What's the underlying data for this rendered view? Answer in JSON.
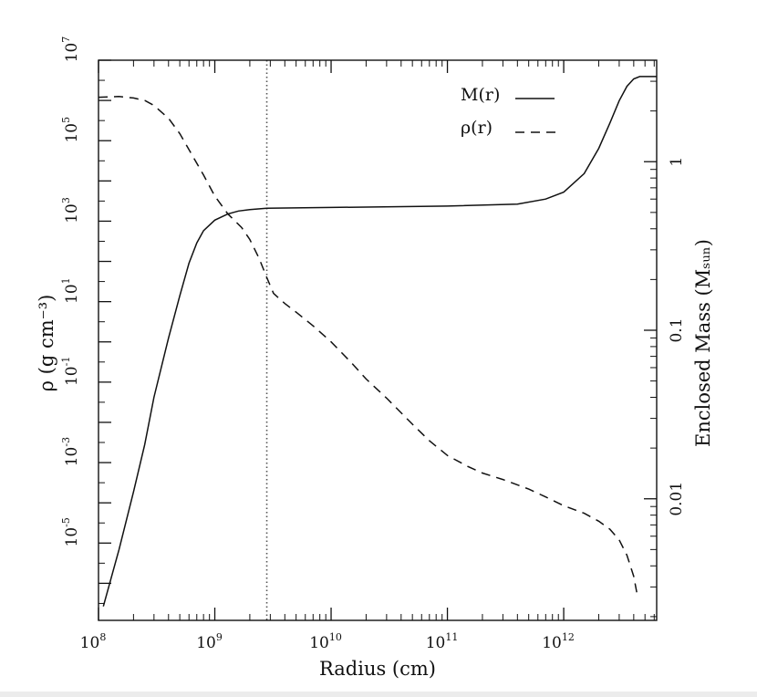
{
  "chart_data": {
    "type": "line",
    "title": "",
    "xlabel": "Radius (cm)",
    "ylabel_left": "ρ (g cm⁻³)",
    "ylabel_right": "Enclosed Mass (Mₛᵤₙ)",
    "xscale": "log",
    "yscale_left": "log",
    "yscale_right": "log",
    "xlim": [
      100000000.0,
      6300000000000.0
    ],
    "ylim_left": [
      1.2e-07,
      10000000.0
    ],
    "ylim_right": [
      0.0019,
      4.0
    ],
    "x_ticks": [
      {
        "base": "10",
        "exp": "8",
        "value": 100000000.0
      },
      {
        "base": "10",
        "exp": "9",
        "value": 1000000000.0
      },
      {
        "base": "10",
        "exp": "10",
        "value": 10000000000.0
      },
      {
        "base": "10",
        "exp": "11",
        "value": 100000000000.0
      },
      {
        "base": "10",
        "exp": "12",
        "value": 1000000000000.0
      }
    ],
    "y_left_ticks": [
      {
        "base": "10",
        "exp": "7",
        "value": 10000000.0
      },
      {
        "base": "10",
        "exp": "5",
        "value": 100000.0
      },
      {
        "base": "10",
        "exp": "3",
        "value": 1000.0
      },
      {
        "base": "10",
        "exp": "1",
        "value": 10
      },
      {
        "base": "10",
        "exp": "-1",
        "value": 0.1
      },
      {
        "base": "10",
        "exp": "-3",
        "value": 0.001
      },
      {
        "base": "10",
        "exp": "-5",
        "value": 1e-05
      }
    ],
    "y_right_ticks": [
      {
        "label": "1",
        "value": 1
      },
      {
        "label": "0.1",
        "value": 0.1
      },
      {
        "label": "0.01",
        "value": 0.01
      }
    ],
    "vertical_line": {
      "x": 2800000000.0,
      "style": "dotted"
    },
    "legend": {
      "position": "top-right"
    },
    "series": [
      {
        "name": "M(r)",
        "axis": "right",
        "style": "solid",
        "points": [
          [
            110000000.0,
            0.0023
          ],
          [
            150000000.0,
            0.005
          ],
          [
            200000000.0,
            0.011
          ],
          [
            250000000.0,
            0.021
          ],
          [
            300000000.0,
            0.04
          ],
          [
            400000000.0,
            0.09
          ],
          [
            500000000.0,
            0.16
          ],
          [
            600000000.0,
            0.25
          ],
          [
            700000000.0,
            0.33
          ],
          [
            800000000.0,
            0.39
          ],
          [
            1000000000.0,
            0.45
          ],
          [
            1300000000.0,
            0.49
          ],
          [
            1600000000.0,
            0.51
          ],
          [
            2000000000.0,
            0.52
          ],
          [
            2800000000.0,
            0.53
          ],
          [
            10000000000.0,
            0.535
          ],
          [
            100000000000.0,
            0.545
          ],
          [
            400000000000.0,
            0.56
          ],
          [
            700000000000.0,
            0.6
          ],
          [
            1000000000000.0,
            0.66
          ],
          [
            1500000000000.0,
            0.85
          ],
          [
            2000000000000.0,
            1.2
          ],
          [
            2500000000000.0,
            1.7
          ],
          [
            3000000000000.0,
            2.3
          ],
          [
            3500000000000.0,
            2.8
          ],
          [
            4000000000000.0,
            3.1
          ],
          [
            4500000000000.0,
            3.2
          ],
          [
            6300000000000.0,
            3.2
          ]
        ]
      },
      {
        "name": "ρ(r)",
        "axis": "left",
        "style": "dashed",
        "points": [
          [
            100000000.0,
            1200000.0
          ],
          [
            150000000.0,
            1250000.0
          ],
          [
            200000000.0,
            1150000.0
          ],
          [
            250000000.0,
            1000000.0
          ],
          [
            300000000.0,
            750000.0
          ],
          [
            400000000.0,
            360000.0
          ],
          [
            500000000.0,
            150000.0
          ],
          [
            600000000.0,
            60000.0
          ],
          [
            800000000.0,
            14000.0
          ],
          [
            1000000000.0,
            4200.0
          ],
          [
            1300000000.0,
            1500.0
          ],
          [
            1700000000.0,
            700.0
          ],
          [
            2000000000.0,
            350.0
          ],
          [
            2400000000.0,
            120.0
          ],
          [
            2800000000.0,
            40
          ],
          [
            3200000000.0,
            16
          ],
          [
            4000000000.0,
            9
          ],
          [
            5000000000.0,
            5.5
          ],
          [
            7000000000.0,
            2.5
          ],
          [
            10000000000.0,
            1
          ],
          [
            15000000000.0,
            0.3
          ],
          [
            20000000000.0,
            0.12
          ],
          [
            30000000000.0,
            0.04
          ],
          [
            50000000000.0,
            0.009
          ],
          [
            70000000000.0,
            0.0035
          ],
          [
            100000000000.0,
            0.0015
          ],
          [
            150000000000.0,
            0.0008
          ],
          [
            200000000000.0,
            0.00055
          ],
          [
            300000000000.0,
            0.00038
          ],
          [
            500000000000.0,
            0.00022
          ],
          [
            700000000000.0,
            0.00014
          ],
          [
            1000000000000.0,
            8.5e-05
          ],
          [
            1500000000000.0,
            5.5e-05
          ],
          [
            2000000000000.0,
            3.5e-05
          ],
          [
            2500000000000.0,
            2.2e-05
          ],
          [
            3000000000000.0,
            1.2e-05
          ],
          [
            3500000000000.0,
            5e-06
          ],
          [
            4000000000000.0,
            1.5e-06
          ],
          [
            4300000000000.0,
            5e-07
          ]
        ]
      }
    ]
  }
}
